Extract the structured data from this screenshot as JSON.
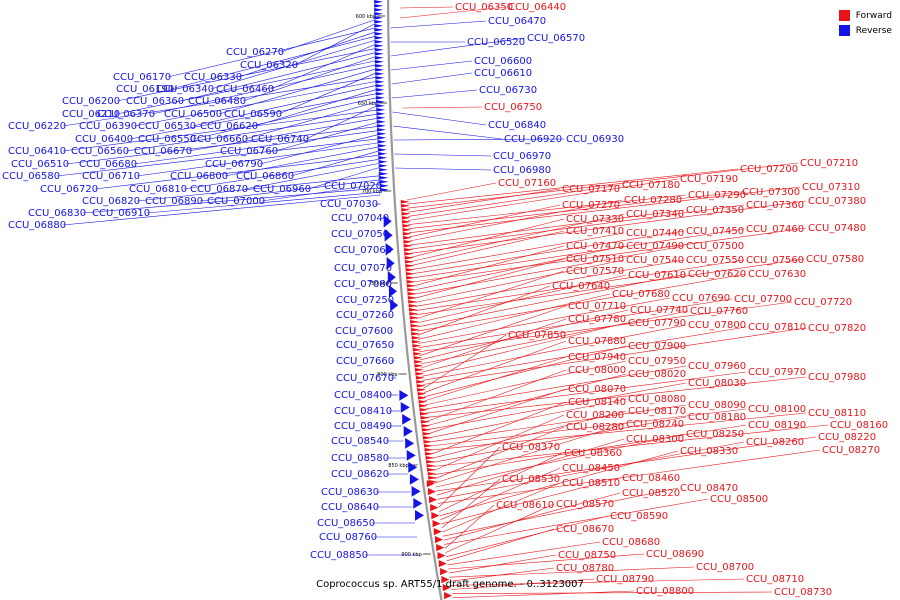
{
  "caption": "Coprococcus sp. ART55/1 draft genome. - 0..3123007",
  "legend": [
    {
      "label": "Forward",
      "color": "#e8141a"
    },
    {
      "label": "Reverse",
      "color": "#1414e6"
    }
  ],
  "colors": {
    "forward": "#e8141a",
    "reverse": "#1414e6",
    "axis": "#999999"
  },
  "scale_ticks": [
    "600 kbp",
    "650 kbp",
    "700 kbp",
    "750 kbp",
    "800 kbp",
    "850 kbp",
    "900 kbp"
  ],
  "reverse_labels": [
    "CCU_06270",
    "CCU_06320",
    "CCU_06170",
    "CCU_06330",
    "CCU_06190",
    "CCU_06340",
    "CCU_06460",
    "CCU_06200",
    "CCU_06360",
    "CCU_06480",
    "CCU_06210",
    "CCU_06370",
    "CCU_06500",
    "CCU_06590",
    "CCU_06220",
    "CCU_06390",
    "CCU_06530",
    "CCU_06620",
    "CCU_06400",
    "CCU_06550",
    "CCU_06660",
    "CCU_06740",
    "CCU_06410",
    "CCU_06560",
    "CCU_06670",
    "CCU_06760",
    "CCU_06510",
    "CCU_06680",
    "CCU_06790",
    "CCU_06580",
    "CCU_06710",
    "CCU_06800",
    "CCU_06860",
    "CCU_06720",
    "CCU_06810",
    "CCU_06870",
    "CCU_06960",
    "CCU_07020",
    "CCU_06820",
    "CCU_06890",
    "CCU_07000",
    "CCU_06830",
    "CCU_06910",
    "CCU_06880",
    "CCU_07030",
    "CCU_07040",
    "CCU_07050",
    "CCU_07060",
    "CCU_07070",
    "CCU_07080",
    "CCU_07250",
    "CCU_07260",
    "CCU_07600",
    "CCU_07650",
    "CCU_07660",
    "CCU_07670",
    "CCU_08400",
    "CCU_08410",
    "CCU_08490",
    "CCU_08540",
    "CCU_08580",
    "CCU_08620",
    "CCU_08630",
    "CCU_08640",
    "CCU_08650",
    "CCU_08760",
    "CCU_08850"
  ],
  "reverse_labels_right": [
    "CCU_06470",
    "CCU_06520",
    "CCU_06570",
    "CCU_06600",
    "CCU_06610",
    "CCU_06730",
    "CCU_06840",
    "CCU_06920",
    "CCU_06930",
    "CCU_06970",
    "CCU_06980"
  ],
  "forward_labels": [
    "CCU_06350",
    "CCU_06440",
    "CCU_06750",
    "CCU_07160",
    "CCU_07200",
    "CCU_07210",
    "CCU_07170",
    "CCU_07180",
    "CCU_07190",
    "CCU_07290",
    "CCU_07300",
    "CCU_07310",
    "CCU_07270",
    "CCU_07280",
    "CCU_07350",
    "CCU_07360",
    "CCU_07380",
    "CCU_07330",
    "CCU_07340",
    "CCU_07410",
    "CCU_07440",
    "CCU_07450",
    "CCU_07460",
    "CCU_07480",
    "CCU_07470",
    "CCU_07490",
    "CCU_07500",
    "CCU_07510",
    "CCU_07540",
    "CCU_07550",
    "CCU_07560",
    "CCU_07580",
    "CCU_07570",
    "CCU_07610",
    "CCU_07620",
    "CCU_07630",
    "CCU_07640",
    "CCU_07680",
    "CCU_07690",
    "CCU_07700",
    "CCU_07720",
    "CCU_07710",
    "CCU_07740",
    "CCU_07760",
    "CCU_07780",
    "CCU_07790",
    "CCU_07800",
    "CCU_07810",
    "CCU_07820",
    "CCU_07850",
    "CCU_07880",
    "CCU_07900",
    "CCU_07940",
    "CCU_07950",
    "CCU_07960",
    "CCU_07970",
    "CCU_07980",
    "CCU_08000",
    "CCU_08020",
    "CCU_08030",
    "CCU_08070",
    "CCU_08080",
    "CCU_08090",
    "CCU_08100",
    "CCU_08110",
    "CCU_08140",
    "CCU_08170",
    "CCU_08180",
    "CCU_08160",
    "CCU_08200",
    "CCU_08190",
    "CCU_08280",
    "CCU_08240",
    "CCU_08250",
    "CCU_08220",
    "CCU_08300",
    "CCU_08260",
    "CCU_08270",
    "CCU_08370",
    "CCU_08360",
    "CCU_08330",
    "CCU_08450",
    "CCU_08460",
    "CCU_08530",
    "CCU_08510",
    "CCU_08470",
    "CCU_08520",
    "CCU_08500",
    "CCU_08610",
    "CCU_08570",
    "CCU_08590",
    "CCU_08670",
    "CCU_08680",
    "CCU_08690",
    "CCU_08750",
    "CCU_08700",
    "CCU_08780",
    "CCU_08710",
    "CCU_08790",
    "CCU_08730",
    "CCU_08800"
  ]
}
